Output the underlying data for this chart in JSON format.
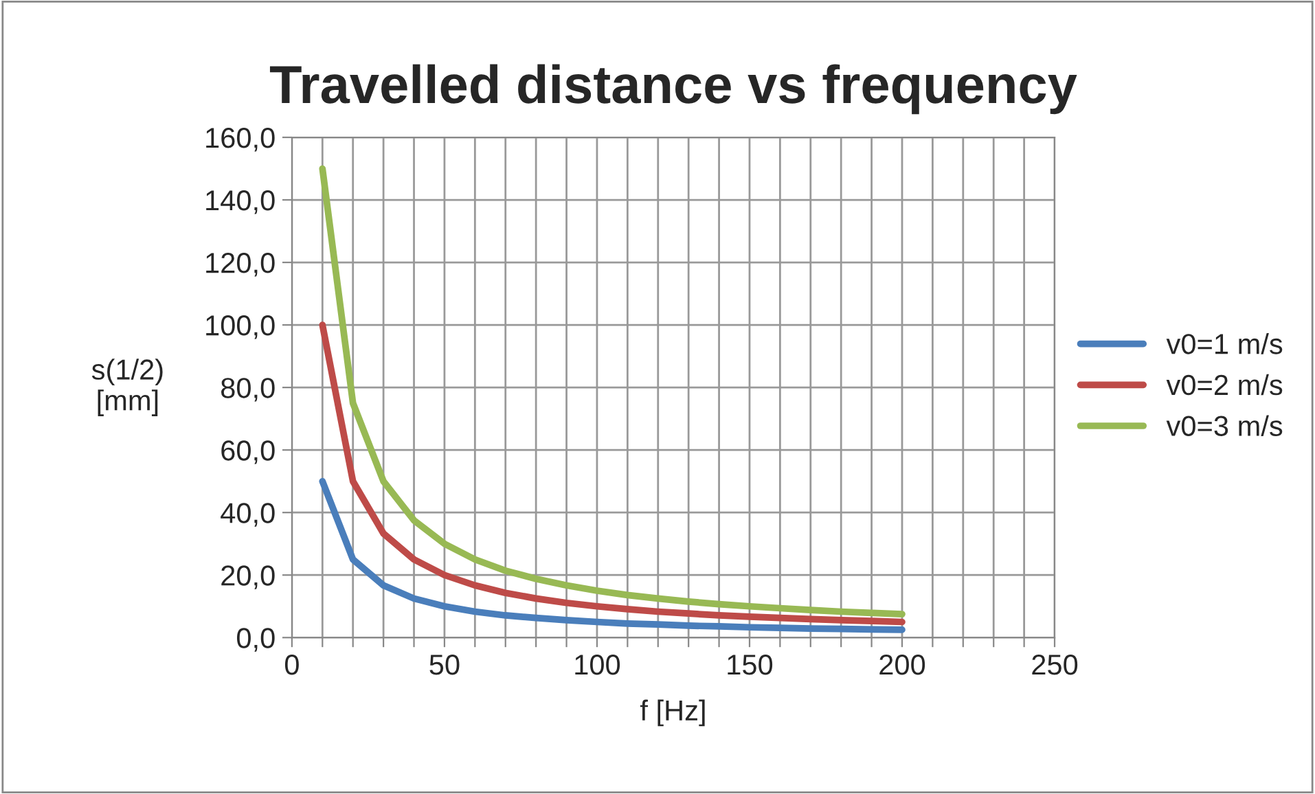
{
  "chart_data": {
    "type": "line",
    "title": "Travelled distance vs frequency",
    "xlabel": "f [Hz]",
    "ylabel": "s(1/2)\n[mm]",
    "x": [
      10,
      20,
      30,
      40,
      50,
      60,
      70,
      80,
      90,
      100,
      110,
      120,
      130,
      140,
      150,
      160,
      170,
      180,
      190,
      200
    ],
    "series": [
      {
        "name": "v0=1 m/s",
        "color": "#4a7ebb",
        "values": [
          50,
          25,
          16.7,
          12.5,
          10,
          8.3,
          7.1,
          6.3,
          5.6,
          5,
          4.5,
          4.2,
          3.8,
          3.6,
          3.3,
          3.1,
          2.9,
          2.8,
          2.6,
          2.5
        ]
      },
      {
        "name": "v0=2 m/s",
        "color": "#be4b48",
        "values": [
          100,
          50,
          33.3,
          25,
          20,
          16.7,
          14.3,
          12.5,
          11.1,
          10,
          9.1,
          8.3,
          7.7,
          7.1,
          6.7,
          6.3,
          5.9,
          5.6,
          5.3,
          5
        ]
      },
      {
        "name": "v0=3 m/s",
        "color": "#98b954",
        "values": [
          150,
          75,
          50,
          37.5,
          30,
          25,
          21.4,
          18.8,
          16.7,
          15,
          13.6,
          12.5,
          11.5,
          10.7,
          10,
          9.4,
          8.8,
          8.3,
          7.9,
          7.5
        ]
      }
    ],
    "xlim": [
      0,
      250
    ],
    "xticks": [
      0,
      {
        "value": 10,
        "label": null
      },
      {
        "value": 20,
        "label": null
      },
      {
        "value": 30,
        "label": null
      },
      {
        "value": 40,
        "label": null
      },
      50,
      {
        "value": 60,
        "label": null
      },
      {
        "value": 70,
        "label": null
      },
      {
        "value": 80,
        "label": null
      },
      {
        "value": 90,
        "label": null
      },
      100,
      {
        "value": 110,
        "label": null
      },
      {
        "value": 120,
        "label": null
      },
      {
        "value": 130,
        "label": null
      },
      {
        "value": 140,
        "label": null
      },
      150,
      {
        "value": 160,
        "label": null
      },
      {
        "value": 170,
        "label": null
      },
      {
        "value": 180,
        "label": null
      },
      {
        "value": 190,
        "label": null
      },
      200,
      {
        "value": 210,
        "label": null
      },
      {
        "value": 220,
        "label": null
      },
      {
        "value": 230,
        "label": null
      },
      {
        "value": 240,
        "label": null
      },
      250
    ],
    "ylim": [
      0,
      160
    ],
    "yticks": [
      {
        "value": 0,
        "label": "0,0"
      },
      {
        "value": 20,
        "label": "20,0"
      },
      {
        "value": 40,
        "label": "40,0"
      },
      {
        "value": 60,
        "label": "60,0"
      },
      {
        "value": 80,
        "label": "80,0"
      },
      {
        "value": 100,
        "label": "100,0"
      },
      {
        "value": 120,
        "label": "120,0"
      },
      {
        "value": 140,
        "label": "140,0"
      },
      {
        "value": 160,
        "label": "160,0"
      }
    ],
    "grid": true,
    "legend": "right",
    "marker": "none",
    "line_style": "solid"
  }
}
